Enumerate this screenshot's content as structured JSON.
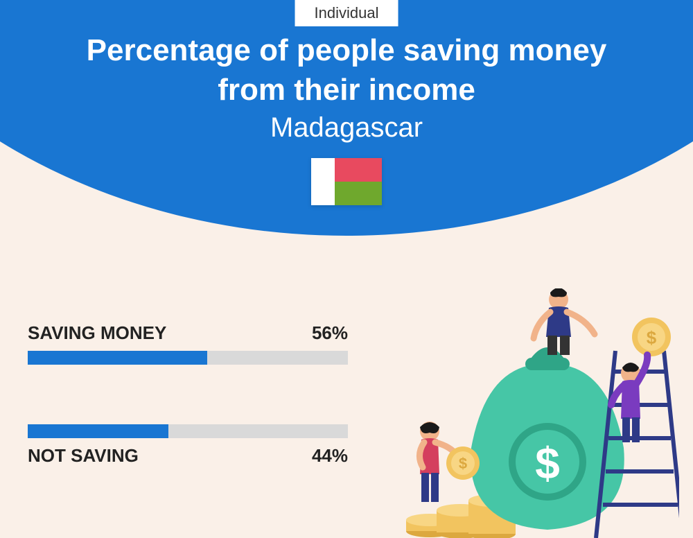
{
  "badge": "Individual",
  "title_line1": "Percentage of people saving money",
  "title_line2": "from their income",
  "country": "Madagascar",
  "flag": {
    "left_color": "#ffffff",
    "top_color": "#e84a5f",
    "bottom_color": "#6fa82d"
  },
  "colors": {
    "header": "#1976d2",
    "page_bg": "#faf0e8",
    "bar_fill": "#1976d2",
    "bar_track": "#d9d9d9",
    "text": "#222222"
  },
  "bars": [
    {
      "label": "SAVING MONEY",
      "value": 56,
      "display": "56%",
      "label_position": "above"
    },
    {
      "label": "NOT SAVING",
      "value": 44,
      "display": "44%",
      "label_position": "below"
    }
  ],
  "illustration": {
    "bag_color": "#46c6a6",
    "bag_dark": "#2fa587",
    "coin_color": "#f2c45f",
    "coin_dark": "#dca83f",
    "ladder_color": "#2e3a87",
    "person1": {
      "shirt": "#2e3a87",
      "pants": "#333333",
      "skin": "#f1b38a",
      "hair": "#1a1a1a"
    },
    "person2": {
      "shirt": "#7a3bbf",
      "pants": "#2e3a87",
      "skin": "#f1b38a",
      "hair": "#1a1a1a"
    },
    "person3": {
      "shirt": "#d43f5e",
      "pants": "#2e3a87",
      "skin": "#f1b38a",
      "hair": "#1a1a1a"
    }
  }
}
